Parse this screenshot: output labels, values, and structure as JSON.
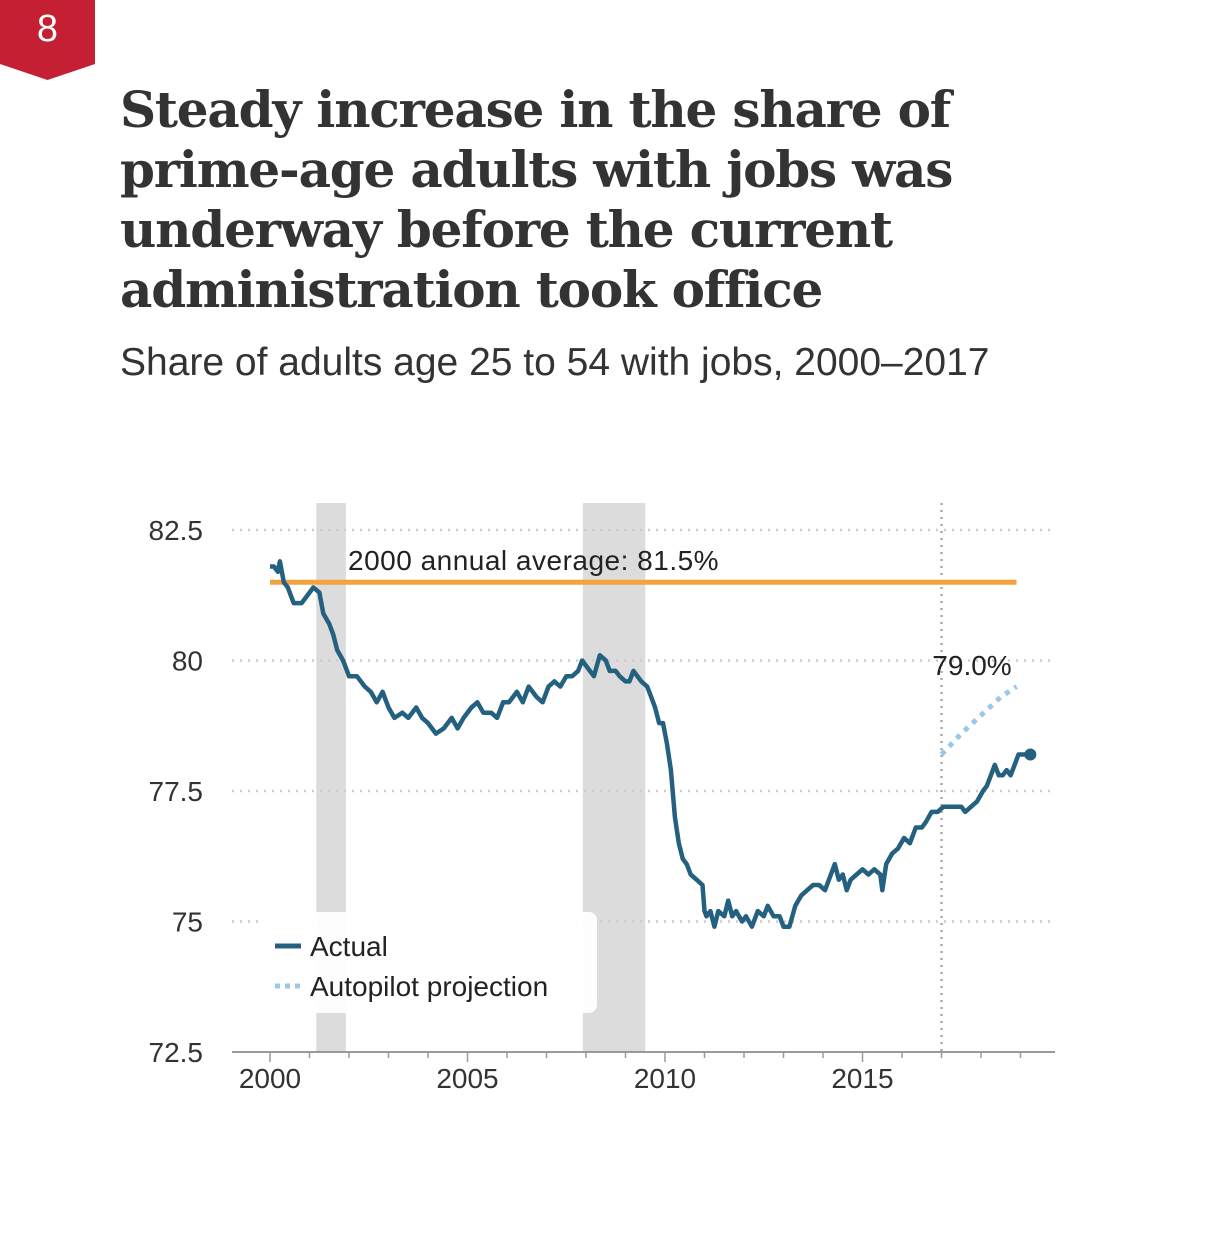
{
  "badge": {
    "number": "8",
    "color": "#c41f33"
  },
  "title": "Steady increase in the share of prime-age adults with jobs was underway before the current administration took office",
  "subtitle": "Share of adults age 25 to 54 with jobs, 2000–2017",
  "chart_data": {
    "type": "line",
    "title": "Steady increase in the share of prime-age adults with jobs was underway before the current administration took office",
    "subtitle": "Share of adults age 25 to 54 with jobs, 2000–2017",
    "xlim": [
      1999.3,
      2019.3
    ],
    "ylim": [
      72.5,
      82.5
    ],
    "x_ticks": [
      2000,
      2005,
      2010,
      2015
    ],
    "x_tick_labels": [
      "2000",
      "2005",
      "2010",
      "2015"
    ],
    "y_ticks": [
      72.5,
      75,
      77.5,
      80,
      82.5
    ],
    "y_tick_labels": [
      "72.5",
      "75",
      "77.5",
      "80",
      "82.5"
    ],
    "grid": "horizontal dotted",
    "recessions": [
      [
        2001.17,
        2001.92
      ],
      [
        2007.92,
        2009.5
      ]
    ],
    "reference_line": {
      "value": 81.5,
      "label": "2000 annual average: 81.5%",
      "x_range": [
        2000,
        2018.9
      ],
      "color": "#f4a23d"
    },
    "vertical_marker": {
      "x": 2017.0
    },
    "end_label": {
      "x": 2017.75,
      "y": 79.0,
      "text": "79.0%"
    },
    "series": [
      {
        "name": "Actual",
        "color": "#24607f",
        "style": "solid",
        "points": [
          [
            2000.0,
            81.8
          ],
          [
            2000.1,
            81.8
          ],
          [
            2000.2,
            81.7
          ],
          [
            2000.25,
            81.9
          ],
          [
            2000.35,
            81.5
          ],
          [
            2000.45,
            81.4
          ],
          [
            2000.6,
            81.1
          ],
          [
            2000.8,
            81.1
          ],
          [
            2001.0,
            81.3
          ],
          [
            2001.1,
            81.4
          ],
          [
            2001.25,
            81.3
          ],
          [
            2001.35,
            80.9
          ],
          [
            2001.5,
            80.7
          ],
          [
            2001.6,
            80.5
          ],
          [
            2001.7,
            80.2
          ],
          [
            2001.85,
            80.0
          ],
          [
            2002.0,
            79.7
          ],
          [
            2002.2,
            79.7
          ],
          [
            2002.4,
            79.5
          ],
          [
            2002.55,
            79.4
          ],
          [
            2002.7,
            79.2
          ],
          [
            2002.85,
            79.4
          ],
          [
            2003.0,
            79.1
          ],
          [
            2003.15,
            78.9
          ],
          [
            2003.35,
            79.0
          ],
          [
            2003.5,
            78.9
          ],
          [
            2003.7,
            79.1
          ],
          [
            2003.85,
            78.9
          ],
          [
            2004.0,
            78.8
          ],
          [
            2004.2,
            78.6
          ],
          [
            2004.4,
            78.7
          ],
          [
            2004.6,
            78.9
          ],
          [
            2004.75,
            78.7
          ],
          [
            2004.9,
            78.9
          ],
          [
            2005.1,
            79.1
          ],
          [
            2005.25,
            79.2
          ],
          [
            2005.4,
            79.0
          ],
          [
            2005.6,
            79.0
          ],
          [
            2005.75,
            78.9
          ],
          [
            2005.9,
            79.2
          ],
          [
            2006.05,
            79.2
          ],
          [
            2006.25,
            79.4
          ],
          [
            2006.4,
            79.2
          ],
          [
            2006.55,
            79.5
          ],
          [
            2006.75,
            79.3
          ],
          [
            2006.9,
            79.2
          ],
          [
            2007.05,
            79.5
          ],
          [
            2007.2,
            79.6
          ],
          [
            2007.35,
            79.5
          ],
          [
            2007.5,
            79.7
          ],
          [
            2007.65,
            79.7
          ],
          [
            2007.8,
            79.8
          ],
          [
            2007.9,
            80.0
          ],
          [
            2008.0,
            79.9
          ],
          [
            2008.1,
            79.8
          ],
          [
            2008.2,
            79.7
          ],
          [
            2008.35,
            80.1
          ],
          [
            2008.5,
            80.0
          ],
          [
            2008.6,
            79.8
          ],
          [
            2008.75,
            79.8
          ],
          [
            2008.85,
            79.7
          ],
          [
            2009.0,
            79.6
          ],
          [
            2009.1,
            79.6
          ],
          [
            2009.2,
            79.8
          ],
          [
            2009.4,
            79.6
          ],
          [
            2009.55,
            79.5
          ],
          [
            2009.65,
            79.3
          ],
          [
            2009.75,
            79.1
          ],
          [
            2009.85,
            78.8
          ],
          [
            2009.95,
            78.8
          ],
          [
            2010.05,
            78.4
          ],
          [
            2010.15,
            77.9
          ],
          [
            2010.25,
            77.0
          ],
          [
            2010.35,
            76.5
          ],
          [
            2010.45,
            76.2
          ],
          [
            2010.55,
            76.1
          ],
          [
            2010.65,
            75.9
          ],
          [
            2010.8,
            75.8
          ],
          [
            2010.95,
            75.7
          ],
          [
            2011.0,
            75.2
          ],
          [
            2011.05,
            75.1
          ],
          [
            2011.15,
            75.2
          ],
          [
            2011.25,
            74.9
          ],
          [
            2011.35,
            75.2
          ],
          [
            2011.5,
            75.1
          ],
          [
            2011.6,
            75.4
          ],
          [
            2011.7,
            75.1
          ],
          [
            2011.8,
            75.2
          ],
          [
            2011.95,
            75.0
          ],
          [
            2012.05,
            75.1
          ],
          [
            2012.2,
            74.9
          ],
          [
            2012.35,
            75.2
          ],
          [
            2012.5,
            75.1
          ],
          [
            2012.6,
            75.3
          ],
          [
            2012.75,
            75.1
          ],
          [
            2012.9,
            75.1
          ],
          [
            2013.0,
            74.9
          ],
          [
            2013.15,
            74.9
          ],
          [
            2013.3,
            75.3
          ],
          [
            2013.45,
            75.5
          ],
          [
            2013.6,
            75.6
          ],
          [
            2013.75,
            75.7
          ],
          [
            2013.9,
            75.7
          ],
          [
            2014.05,
            75.6
          ],
          [
            2014.2,
            75.9
          ],
          [
            2014.3,
            76.1
          ],
          [
            2014.4,
            75.8
          ],
          [
            2014.5,
            75.9
          ],
          [
            2014.6,
            75.6
          ],
          [
            2014.7,
            75.8
          ],
          [
            2014.85,
            75.9
          ],
          [
            2015.0,
            76.0
          ],
          [
            2015.15,
            75.9
          ],
          [
            2015.3,
            76.0
          ],
          [
            2015.45,
            75.9
          ],
          [
            2015.5,
            75.6
          ],
          [
            2015.6,
            76.1
          ],
          [
            2015.75,
            76.3
          ],
          [
            2015.9,
            76.4
          ],
          [
            2016.05,
            76.6
          ],
          [
            2016.2,
            76.5
          ],
          [
            2016.35,
            76.8
          ],
          [
            2016.5,
            76.8
          ],
          [
            2016.6,
            76.9
          ],
          [
            2016.75,
            77.1
          ],
          [
            2016.9,
            77.1
          ],
          [
            2017.05,
            77.2
          ],
          [
            2017.2,
            77.2
          ],
          [
            2017.35,
            77.2
          ],
          [
            2017.5,
            77.2
          ],
          [
            2017.6,
            77.1
          ],
          [
            2017.75,
            77.2
          ],
          [
            2017.9,
            77.3
          ],
          [
            2018.05,
            77.5
          ],
          [
            2018.15,
            77.6
          ],
          [
            2018.25,
            77.8
          ],
          [
            2018.35,
            78.0
          ],
          [
            2018.45,
            77.8
          ],
          [
            2018.55,
            77.8
          ],
          [
            2018.65,
            77.9
          ],
          [
            2018.75,
            77.8
          ],
          [
            2018.85,
            78.0
          ],
          [
            2018.95,
            78.2
          ],
          [
            2019.1,
            78.2
          ],
          [
            2019.25,
            78.2
          ]
        ]
      },
      {
        "name": "Autopilot projection",
        "color": "#9cc8e8",
        "style": "dotted",
        "points": [
          [
            2017.0,
            78.2
          ],
          [
            2017.5,
            78.6
          ],
          [
            2018.0,
            78.95
          ],
          [
            2018.5,
            79.3
          ],
          [
            2018.9,
            79.5
          ]
        ]
      }
    ],
    "legend": {
      "position": "bottom-left",
      "entries": [
        "Actual",
        "Autopilot projection"
      ]
    }
  }
}
